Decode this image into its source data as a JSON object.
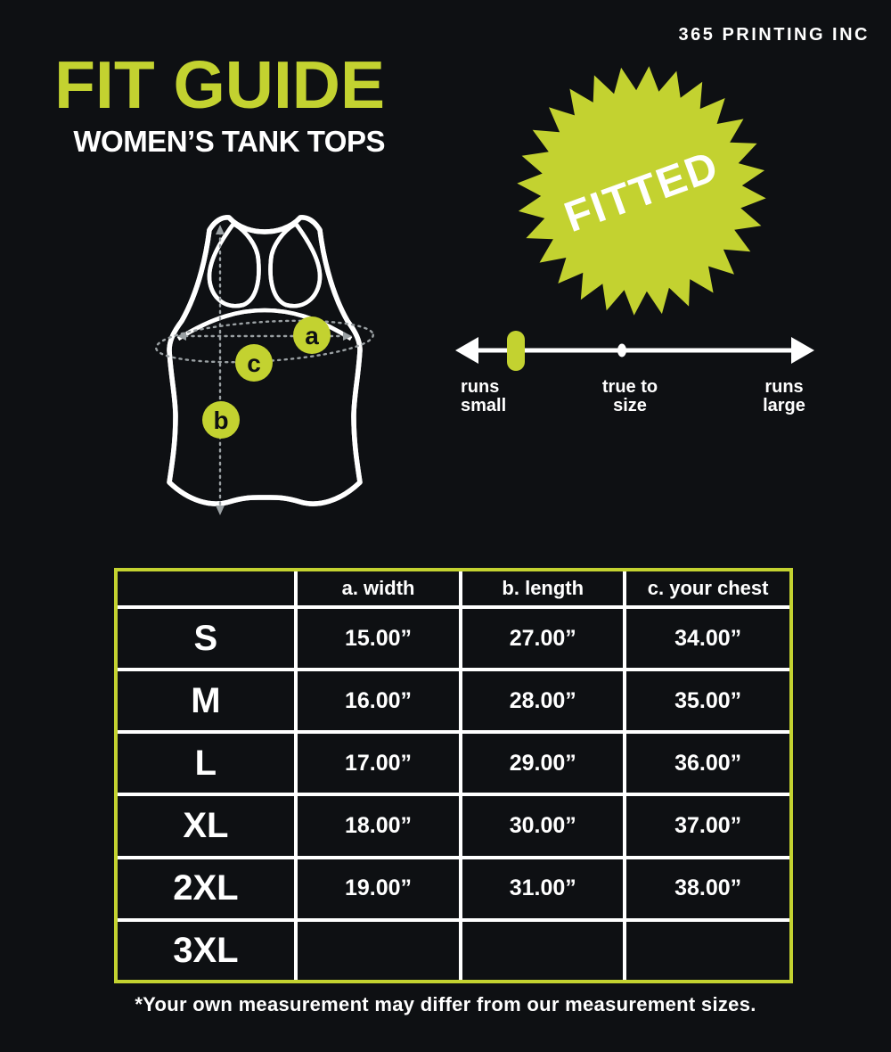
{
  "brand": "365 PRINTING INC",
  "header": {
    "title": "FIT GUIDE",
    "subtitle": "WOMEN’S TANK TOPS"
  },
  "badge": {
    "label": "FITTED"
  },
  "fit_scale": {
    "labels": {
      "left_line1": "runs",
      "left_line2": "small",
      "center_line1": "true to",
      "center_line2": "size",
      "right_line1": "runs",
      "right_line2": "large"
    },
    "marker_position": "runs small"
  },
  "diagram": {
    "marker_a": "a",
    "marker_b": "b",
    "marker_c": "c"
  },
  "size_table": {
    "corner": "",
    "columns": [
      "a. width",
      "b. length",
      "c. your chest"
    ],
    "rows": [
      {
        "size": "S",
        "width": "15.00”",
        "length": "27.00”",
        "chest": "34.00”"
      },
      {
        "size": "M",
        "width": "16.00”",
        "length": "28.00”",
        "chest": "35.00”"
      },
      {
        "size": "L",
        "width": "17.00”",
        "length": "29.00”",
        "chest": "36.00”"
      },
      {
        "size": "XL",
        "width": "18.00”",
        "length": "30.00”",
        "chest": "37.00”"
      },
      {
        "size": "2XL",
        "width": "19.00”",
        "length": "31.00”",
        "chest": "38.00”"
      },
      {
        "size": "3XL",
        "width": "",
        "length": "",
        "chest": ""
      }
    ]
  },
  "footnote": "*Your own measurement may differ from our measurement sizes.",
  "colors": {
    "accent": "#c3d230",
    "background": "#0e1013",
    "text": "#ffffff",
    "dash": "#9aa0a3"
  }
}
